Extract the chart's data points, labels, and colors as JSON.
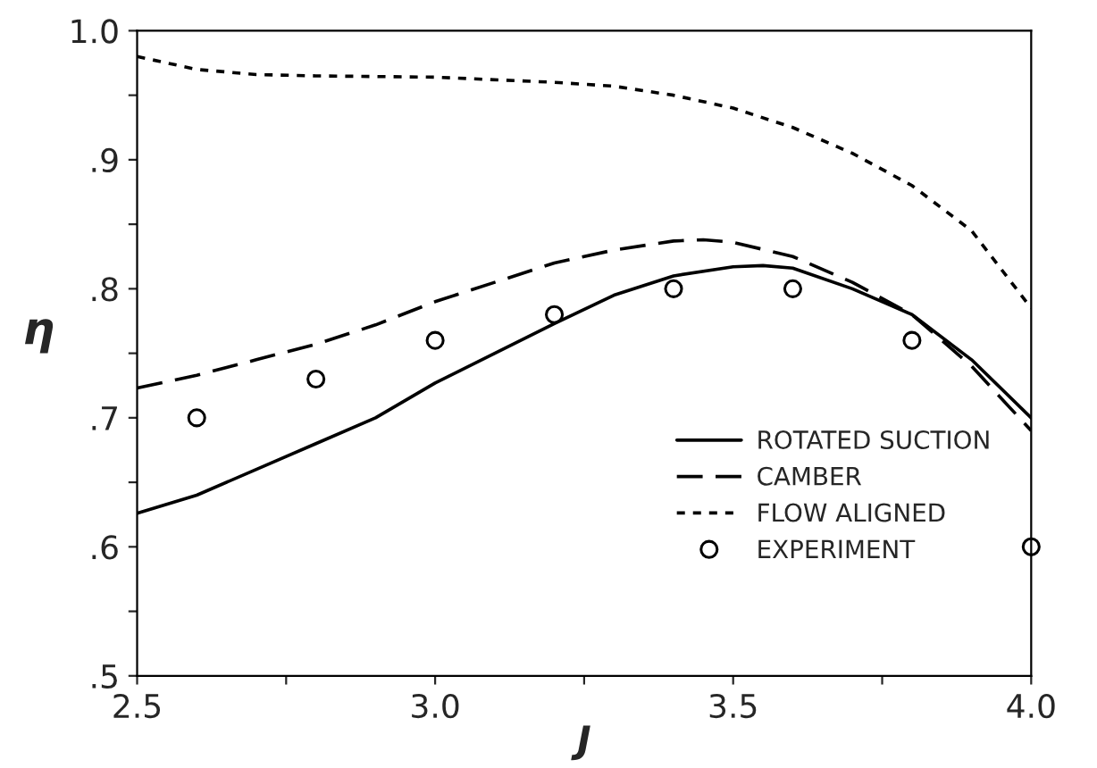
{
  "chart_data": {
    "type": "line",
    "xlabel": "J",
    "ylabel": "η",
    "xlim": [
      2.5,
      4.0
    ],
    "ylim": [
      0.5,
      1.0
    ],
    "xticks": [
      {
        "value": 2.5,
        "label": "2.5"
      },
      {
        "value": 2.75,
        "label": null
      },
      {
        "value": 3.0,
        "label": "3.0"
      },
      {
        "value": 3.25,
        "label": null
      },
      {
        "value": 3.5,
        "label": "3.5"
      },
      {
        "value": 3.75,
        "label": null
      },
      {
        "value": 4.0,
        "label": "4.0"
      }
    ],
    "yticks": [
      {
        "value": 0.5,
        "label": ".5"
      },
      {
        "value": 0.55,
        "label": null
      },
      {
        "value": 0.6,
        "label": ".6"
      },
      {
        "value": 0.65,
        "label": null
      },
      {
        "value": 0.7,
        "label": ".7"
      },
      {
        "value": 0.75,
        "label": null
      },
      {
        "value": 0.8,
        "label": ".8"
      },
      {
        "value": 0.85,
        "label": null
      },
      {
        "value": 0.9,
        "label": ".9"
      },
      {
        "value": 0.95,
        "label": null
      },
      {
        "value": 1.0,
        "label": "1.0"
      }
    ],
    "grid": false,
    "legend": "lower right",
    "series": [
      {
        "name": "ROTATED SUCTION",
        "color": "#000000",
        "line_style": "solid",
        "marker": "none",
        "x": [
          2.5,
          2.6,
          2.7,
          2.8,
          2.9,
          3.0,
          3.1,
          3.2,
          3.3,
          3.4,
          3.5,
          3.55,
          3.6,
          3.7,
          3.8,
          3.9,
          4.0
        ],
        "values": [
          0.626,
          0.64,
          0.66,
          0.68,
          0.7,
          0.727,
          0.75,
          0.773,
          0.795,
          0.81,
          0.817,
          0.818,
          0.816,
          0.8,
          0.78,
          0.745,
          0.7
        ]
      },
      {
        "name": "CAMBER",
        "color": "#000000",
        "line_style": "dashed",
        "marker": "none",
        "x": [
          2.5,
          2.6,
          2.7,
          2.8,
          2.9,
          3.0,
          3.1,
          3.2,
          3.3,
          3.4,
          3.45,
          3.5,
          3.6,
          3.7,
          3.8,
          3.9,
          4.0
        ],
        "values": [
          0.723,
          0.733,
          0.745,
          0.757,
          0.772,
          0.79,
          0.805,
          0.82,
          0.83,
          0.837,
          0.838,
          0.836,
          0.825,
          0.805,
          0.78,
          0.74,
          0.69
        ]
      },
      {
        "name": "FLOW ALIGNED",
        "color": "#000000",
        "line_style": "dotted",
        "marker": "none",
        "x": [
          2.5,
          2.6,
          2.7,
          2.8,
          3.0,
          3.2,
          3.3,
          3.4,
          3.5,
          3.6,
          3.7,
          3.8,
          3.9,
          4.0
        ],
        "values": [
          0.98,
          0.97,
          0.966,
          0.965,
          0.964,
          0.96,
          0.957,
          0.95,
          0.94,
          0.925,
          0.905,
          0.88,
          0.845,
          0.785
        ]
      },
      {
        "name": "EXPERIMENT",
        "type": "scatter",
        "color": "#000000",
        "marker": "circle",
        "x": [
          2.6,
          2.8,
          3.0,
          3.2,
          3.4,
          3.6,
          3.8,
          4.0
        ],
        "values": [
          0.7,
          0.73,
          0.76,
          0.78,
          0.8,
          0.8,
          0.76,
          0.6
        ]
      }
    ]
  }
}
